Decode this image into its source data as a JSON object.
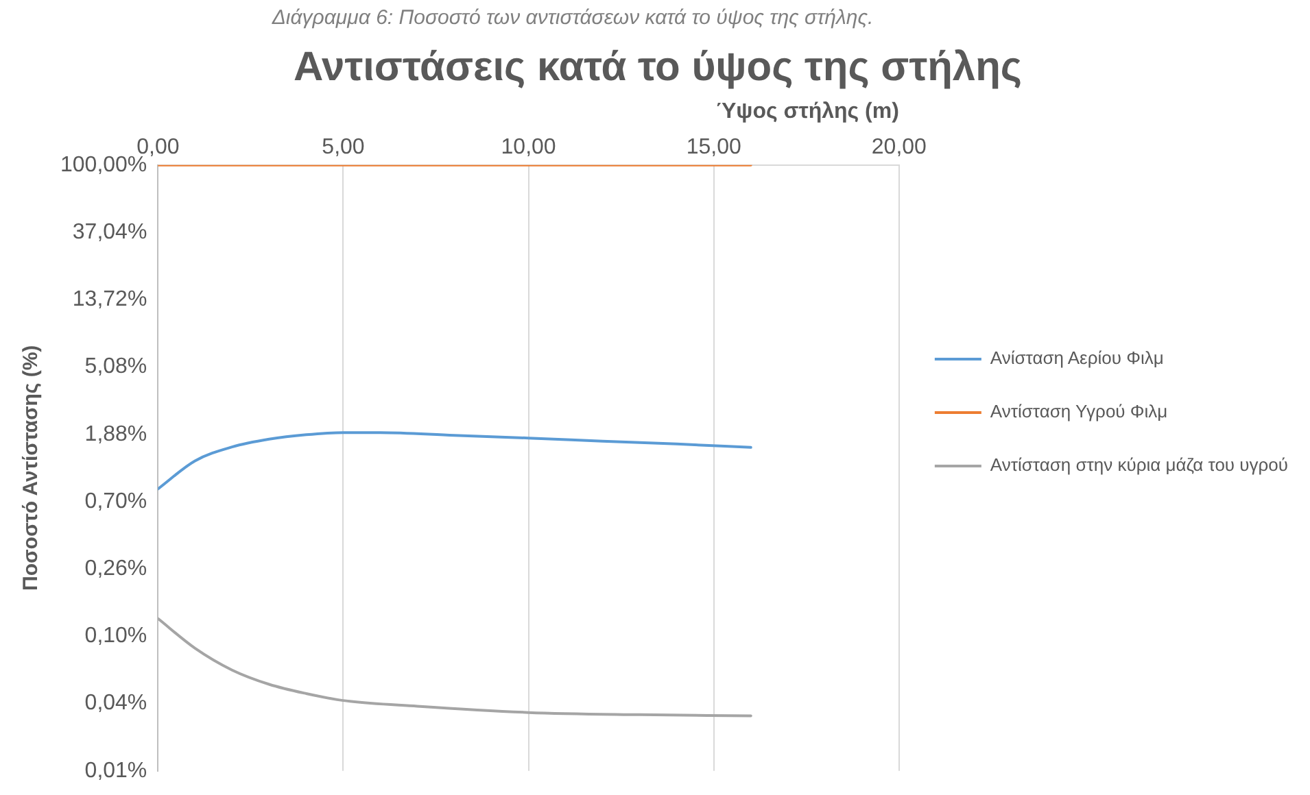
{
  "chart_data": {
    "type": "line",
    "title": "Αντιστάσεις κατά το ύψος της στήλης",
    "annotations": [
      "Διάγραμμα 6: Ποσοστό των αντιστάσεων κατά το ύψος της στήλης."
    ],
    "xlabel": "Ύψος στήλης (m)",
    "ylabel": "Ποσοστό Αντίστασης (%)",
    "log": "y",
    "grid": "x",
    "legend": "right",
    "marker": "none",
    "line_style": "solid",
    "xlim": [
      0,
      20
    ],
    "xticks": [
      {
        "value": 0,
        "label": "0,00"
      },
      {
        "value": 5,
        "label": "5,00"
      },
      {
        "value": 10,
        "label": "10,00"
      },
      {
        "value": 15,
        "label": "15,00"
      },
      {
        "value": 20,
        "label": "20,00"
      }
    ],
    "ylim": [
      0.0131,
      100
    ],
    "yticks": [
      {
        "value": 100,
        "label": "100,00%"
      },
      {
        "value": 37.04,
        "label": "37,04%"
      },
      {
        "value": 13.72,
        "label": "13,72%"
      },
      {
        "value": 5.08,
        "label": "5,08%"
      },
      {
        "value": 1.88,
        "label": "1,88%"
      },
      {
        "value": 0.697,
        "label": "0,70%"
      },
      {
        "value": 0.258,
        "label": "0,26%"
      },
      {
        "value": 0.0956,
        "label": "0,10%"
      },
      {
        "value": 0.0354,
        "label": "0,04%"
      },
      {
        "value": 0.0131,
        "label": "0,01%"
      }
    ],
    "series": [
      {
        "name": "Ανίσταση Αερίου Φιλμ",
        "color": "#5b9bd5",
        "x": [
          0,
          1,
          2,
          3,
          4,
          5,
          6,
          8,
          10,
          12,
          14,
          16
        ],
        "values": [
          0.84,
          1.27,
          1.56,
          1.75,
          1.87,
          1.93,
          1.93,
          1.85,
          1.78,
          1.7,
          1.63,
          1.55
        ]
      },
      {
        "name": "Αντίσταση Υγρού Φιλμ",
        "color": "#ed7d31",
        "x": [
          0,
          16
        ],
        "values": [
          100,
          100
        ]
      },
      {
        "name": "Αντίσταση στην κύρια μάζα του υγρού",
        "color": "#a5a5a5",
        "x": [
          0,
          1,
          2,
          3,
          4,
          5,
          7,
          10,
          13,
          16
        ],
        "values": [
          0.124,
          0.08,
          0.058,
          0.047,
          0.041,
          0.037,
          0.034,
          0.031,
          0.03,
          0.0295
        ]
      }
    ]
  }
}
